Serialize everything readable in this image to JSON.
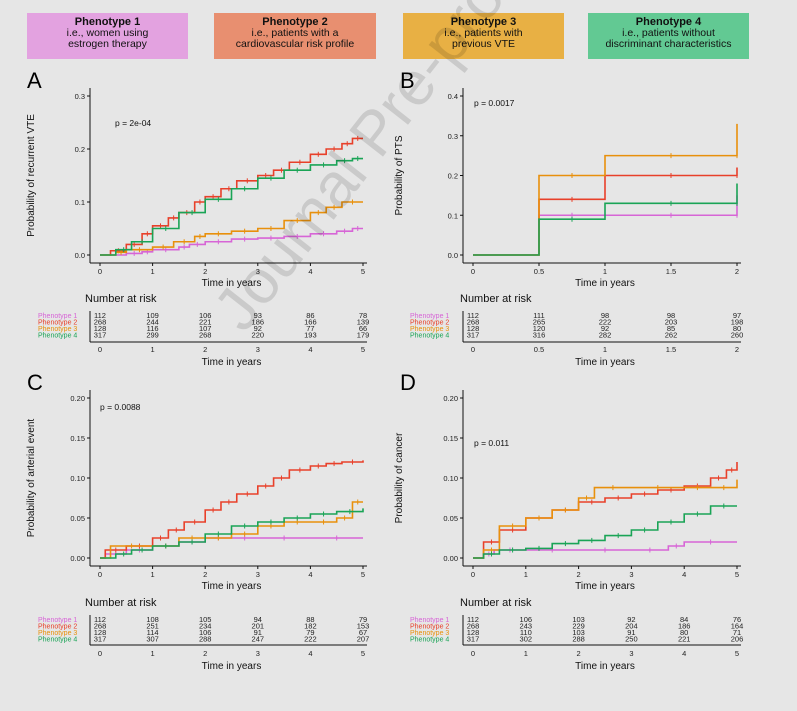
{
  "legend": [
    {
      "title": "Phenotype 1",
      "line1": "i.e., women using",
      "line2": "estrogen therapy",
      "color": "#e3a2e0"
    },
    {
      "title": "Phenotype 2",
      "line1": "i.e., patients with a",
      "line2": "cardiovascular risk profile",
      "color": "#e88f70"
    },
    {
      "title": "Phenotype 3",
      "line1": "i.e., patients with",
      "line2": "previous VTE",
      "color": "#e8b044"
    },
    {
      "title": "Phenotype 4",
      "line1": "i.e., patients without",
      "line2": "discriminant characteristics",
      "color": "#62c993"
    }
  ],
  "series_colors": [
    "#d765d6",
    "#e8402a",
    "#e8900c",
    "#1aa456"
  ],
  "risk_row_labels": [
    "Phenotype 1",
    "Phenotype 2",
    "Phenotype 3",
    "Phenotype 4"
  ],
  "number_at_risk_title": "Number at risk",
  "watermark": "Journal Pre-proof",
  "chart_data": [
    {
      "panel": "A",
      "type": "line",
      "ylabel": "Probability of recurrent VTE",
      "xlabel": "Time in years",
      "pvalue": "p = 2e-04",
      "xlim": [
        0,
        5
      ],
      "ylim": [
        0,
        0.3
      ],
      "xticks": [
        "0",
        "1",
        "2",
        "3",
        "4",
        "5"
      ],
      "xtick_values": [
        0,
        1,
        2,
        3,
        4,
        5
      ],
      "yticks": [
        "0.0",
        "0.1",
        "0.2",
        "0.3"
      ],
      "ytick_values": [
        0,
        0.1,
        0.2,
        0.3
      ],
      "series": [
        {
          "name": "Phenotype 1",
          "x": [
            0,
            0.5,
            0.8,
            1.0,
            1.5,
            1.7,
            2.0,
            2.5,
            3.0,
            3.5,
            4.0,
            4.5,
            4.8,
            5.0
          ],
          "y": [
            0,
            0.003,
            0.006,
            0.01,
            0.015,
            0.02,
            0.025,
            0.03,
            0.032,
            0.035,
            0.04,
            0.045,
            0.05,
            0.05
          ]
        },
        {
          "name": "Phenotype 2",
          "x": [
            0,
            0.2,
            0.5,
            0.8,
            1.0,
            1.3,
            1.5,
            1.8,
            2.0,
            2.3,
            2.6,
            3.0,
            3.3,
            3.6,
            4.0,
            4.3,
            4.6,
            4.8,
            5.0
          ],
          "y": [
            0,
            0.008,
            0.02,
            0.04,
            0.055,
            0.07,
            0.08,
            0.1,
            0.11,
            0.125,
            0.14,
            0.15,
            0.16,
            0.175,
            0.19,
            0.2,
            0.21,
            0.22,
            0.22
          ]
        },
        {
          "name": "Phenotype 3",
          "x": [
            0,
            0.3,
            0.5,
            1.0,
            1.4,
            1.8,
            2.0,
            2.5,
            3.0,
            3.5,
            4.0,
            4.3,
            4.6,
            5.0
          ],
          "y": [
            0,
            0.005,
            0.01,
            0.015,
            0.025,
            0.035,
            0.04,
            0.045,
            0.05,
            0.065,
            0.08,
            0.09,
            0.1,
            0.1
          ]
        },
        {
          "name": "Phenotype 4",
          "x": [
            0,
            0.3,
            0.6,
            1.0,
            1.5,
            2.0,
            2.5,
            3.0,
            3.5,
            4.0,
            4.5,
            4.8,
            5.0
          ],
          "y": [
            0,
            0.01,
            0.025,
            0.05,
            0.08,
            0.105,
            0.125,
            0.145,
            0.16,
            0.17,
            0.178,
            0.182,
            0.182
          ]
        }
      ],
      "risk_x": [
        "0",
        "1",
        "2",
        "3",
        "4",
        "5"
      ],
      "risk": [
        [
          "112",
          "109",
          "106",
          "93",
          "86",
          "78"
        ],
        [
          "268",
          "244",
          "221",
          "186",
          "166",
          "139"
        ],
        [
          "128",
          "116",
          "107",
          "92",
          "77",
          "66"
        ],
        [
          "317",
          "299",
          "268",
          "220",
          "193",
          "179"
        ]
      ]
    },
    {
      "panel": "B",
      "type": "line",
      "ylabel": "Probability of PTS",
      "xlabel": "Time in years",
      "pvalue": "p = 0.0017",
      "xlim": [
        0,
        2
      ],
      "ylim": [
        0,
        0.4
      ],
      "xticks": [
        "0",
        "0.5",
        "1",
        "1.5",
        "2"
      ],
      "xtick_values": [
        0,
        0.5,
        1,
        1.5,
        2
      ],
      "yticks": [
        "0.0",
        "0.1",
        "0.2",
        "0.3",
        "0.4"
      ],
      "ytick_values": [
        0,
        0.1,
        0.2,
        0.3,
        0.4
      ],
      "series": [
        {
          "name": "Phenotype 1",
          "x": [
            0,
            0.5,
            1.0,
            2.0,
            2.0
          ],
          "y": [
            0,
            0.1,
            0.1,
            0.1,
            0.15
          ]
        },
        {
          "name": "Phenotype 2",
          "x": [
            0,
            0.5,
            1.0,
            2.0,
            2.0
          ],
          "y": [
            0,
            0.14,
            0.2,
            0.2,
            0.22
          ]
        },
        {
          "name": "Phenotype 3",
          "x": [
            0,
            0.5,
            1.0,
            2.0,
            2.0
          ],
          "y": [
            0,
            0.2,
            0.25,
            0.25,
            0.33
          ]
        },
        {
          "name": "Phenotype 4",
          "x": [
            0,
            0.5,
            1.0,
            2.0,
            2.0
          ],
          "y": [
            0,
            0.09,
            0.13,
            0.13,
            0.18
          ]
        }
      ],
      "risk_x": [
        "0",
        "0.5",
        "1",
        "1.5",
        "2"
      ],
      "risk": [
        [
          "112",
          "111",
          "98",
          "98",
          "97"
        ],
        [
          "268",
          "265",
          "222",
          "203",
          "198"
        ],
        [
          "128",
          "120",
          "92",
          "85",
          "80"
        ],
        [
          "317",
          "316",
          "282",
          "262",
          "260"
        ]
      ]
    },
    {
      "panel": "C",
      "type": "line",
      "ylabel": "Probability of arterial event",
      "xlabel": "Time in years",
      "pvalue": "p = 0.0088",
      "xlim": [
        0,
        5
      ],
      "ylim": [
        0,
        0.2
      ],
      "xticks": [
        "0",
        "1",
        "2",
        "3",
        "4",
        "5"
      ],
      "xtick_values": [
        0,
        1,
        2,
        3,
        4,
        5
      ],
      "yticks": [
        "0.00",
        "0.05",
        "0.10",
        "0.15",
        "0.20"
      ],
      "ytick_values": [
        0,
        0.05,
        0.1,
        0.15,
        0.2
      ],
      "series": [
        {
          "name": "Phenotype 1",
          "x": [
            0,
            0.1,
            0.5,
            1.0,
            1.5,
            2.0,
            2.5,
            3.0,
            4.0,
            5.0
          ],
          "y": [
            0,
            0.005,
            0.01,
            0.015,
            0.02,
            0.025,
            0.025,
            0.025,
            0.025,
            0.025
          ]
        },
        {
          "name": "Phenotype 2",
          "x": [
            0,
            0.1,
            0.5,
            1.0,
            1.3,
            1.6,
            2.0,
            2.3,
            2.6,
            3.0,
            3.3,
            3.6,
            4.0,
            4.3,
            4.6,
            5.0
          ],
          "y": [
            0,
            0.01,
            0.015,
            0.025,
            0.035,
            0.045,
            0.06,
            0.07,
            0.08,
            0.09,
            0.1,
            0.11,
            0.115,
            0.118,
            0.12,
            0.122
          ]
        },
        {
          "name": "Phenotype 3",
          "x": [
            0,
            0.2,
            1.0,
            1.5,
            2.0,
            2.5,
            3.0,
            3.5,
            4.0,
            4.5,
            4.8,
            5.0
          ],
          "y": [
            0,
            0.015,
            0.015,
            0.025,
            0.025,
            0.03,
            0.04,
            0.045,
            0.045,
            0.05,
            0.07,
            0.07
          ]
        },
        {
          "name": "Phenotype 4",
          "x": [
            0,
            0.3,
            0.6,
            1.0,
            1.5,
            2.0,
            2.5,
            3.0,
            3.5,
            4.0,
            4.5,
            5.0
          ],
          "y": [
            0,
            0.005,
            0.01,
            0.015,
            0.02,
            0.03,
            0.04,
            0.045,
            0.05,
            0.055,
            0.058,
            0.062
          ]
        }
      ],
      "risk_x": [
        "0",
        "1",
        "2",
        "3",
        "4",
        "5"
      ],
      "risk": [
        [
          "112",
          "108",
          "105",
          "94",
          "88",
          "79"
        ],
        [
          "268",
          "251",
          "234",
          "201",
          "182",
          "153"
        ],
        [
          "128",
          "114",
          "106",
          "91",
          "79",
          "67"
        ],
        [
          "317",
          "307",
          "288",
          "247",
          "222",
          "207"
        ]
      ]
    },
    {
      "panel": "D",
      "type": "line",
      "ylabel": "Probability of cancer",
      "xlabel": "Time in years",
      "pvalue": "p = 0.011",
      "xlim": [
        0,
        5
      ],
      "ylim": [
        0,
        0.2
      ],
      "xticks": [
        "0",
        "1",
        "2",
        "3",
        "4",
        "5"
      ],
      "xtick_values": [
        0,
        1,
        2,
        3,
        4,
        5
      ],
      "yticks": [
        "0.00",
        "0.05",
        "0.10",
        "0.15",
        "0.20"
      ],
      "ytick_values": [
        0,
        0.05,
        0.1,
        0.15,
        0.2
      ],
      "series": [
        {
          "name": "Phenotype 1",
          "x": [
            0,
            0.2,
            0.4,
            1.0,
            2.0,
            3.0,
            3.7,
            4.0,
            5.0
          ],
          "y": [
            0,
            0.005,
            0.01,
            0.01,
            0.01,
            0.01,
            0.015,
            0.02,
            0.02
          ]
        },
        {
          "name": "Phenotype 2",
          "x": [
            0,
            0.2,
            0.5,
            1.0,
            1.5,
            2.0,
            2.5,
            3.0,
            3.5,
            4.0,
            4.5,
            4.8,
            5.0
          ],
          "y": [
            0,
            0.02,
            0.035,
            0.05,
            0.06,
            0.07,
            0.075,
            0.08,
            0.085,
            0.09,
            0.1,
            0.11,
            0.12
          ]
        },
        {
          "name": "Phenotype 3",
          "x": [
            0,
            0.2,
            0.5,
            1.0,
            1.5,
            2.0,
            2.3,
            3.0,
            4.0,
            4.5,
            5.0
          ],
          "y": [
            0,
            0.01,
            0.04,
            0.05,
            0.06,
            0.075,
            0.088,
            0.088,
            0.088,
            0.088,
            0.098
          ]
        },
        {
          "name": "Phenotype 4",
          "x": [
            0,
            0.2,
            0.5,
            1.0,
            1.5,
            2.0,
            2.5,
            3.0,
            3.5,
            4.0,
            4.5,
            5.0
          ],
          "y": [
            0,
            0.005,
            0.01,
            0.012,
            0.018,
            0.022,
            0.028,
            0.035,
            0.045,
            0.055,
            0.065,
            0.065
          ]
        }
      ],
      "risk_x": [
        "0",
        "1",
        "2",
        "3",
        "4",
        "5"
      ],
      "risk": [
        [
          "112",
          "106",
          "103",
          "92",
          "84",
          "76"
        ],
        [
          "268",
          "243",
          "229",
          "204",
          "186",
          "164"
        ],
        [
          "128",
          "110",
          "103",
          "91",
          "80",
          "71"
        ],
        [
          "317",
          "302",
          "288",
          "250",
          "221",
          "206"
        ]
      ]
    }
  ]
}
